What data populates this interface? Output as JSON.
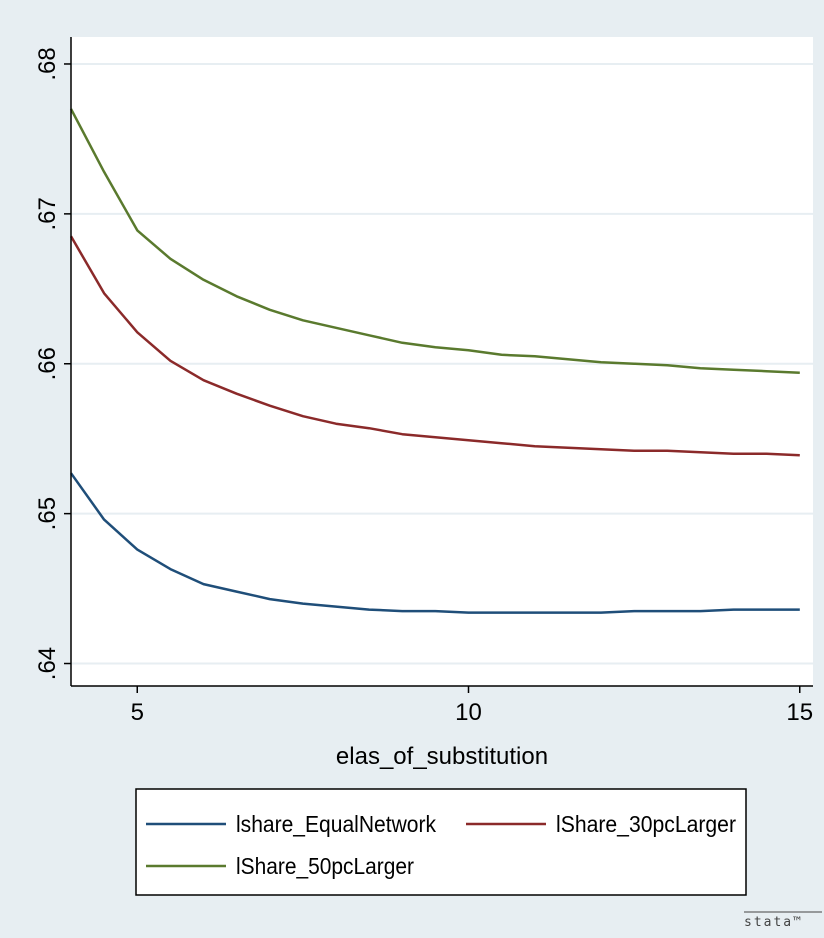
{
  "chart_data": {
    "type": "line",
    "xlabel": "elas_of_substitution",
    "ylabel": "",
    "xlim": [
      4,
      15.2
    ],
    "ylim": [
      0.6385,
      0.6818
    ],
    "x_ticks": [
      5,
      10,
      15
    ],
    "x_tick_labels": [
      "5",
      "10",
      "15"
    ],
    "y_ticks": [
      0.64,
      0.65,
      0.66,
      0.67,
      0.68
    ],
    "y_tick_labels": [
      ".64",
      ".65",
      ".66",
      ".67",
      ".68"
    ],
    "grid": "horizontal",
    "legend_placement": "bottom",
    "x": [
      4,
      4.5,
      5,
      5.5,
      6,
      6.5,
      7,
      7.5,
      8,
      8.5,
      9,
      9.5,
      10,
      10.5,
      11,
      11.5,
      12,
      12.5,
      13,
      13.5,
      14,
      14.5,
      15
    ],
    "series": [
      {
        "name": "lshare_EqualNetwork",
        "color": "#1f4e79",
        "values": [
          0.6527,
          0.6496,
          0.6476,
          0.6463,
          0.6453,
          0.6448,
          0.6443,
          0.644,
          0.6438,
          0.6436,
          0.6435,
          0.6435,
          0.6434,
          0.6434,
          0.6434,
          0.6434,
          0.6434,
          0.6435,
          0.6435,
          0.6435,
          0.6436,
          0.6436,
          0.6436
        ]
      },
      {
        "name": "lShare_30pcLarger",
        "color": "#8b2a2a",
        "values": [
          0.6685,
          0.6647,
          0.6621,
          0.6602,
          0.6589,
          0.658,
          0.6572,
          0.6565,
          0.656,
          0.6557,
          0.6553,
          0.6551,
          0.6549,
          0.6547,
          0.6545,
          0.6544,
          0.6543,
          0.6542,
          0.6542,
          0.6541,
          0.654,
          0.654,
          0.6539
        ]
      },
      {
        "name": "lShare_50pcLarger",
        "color": "#5a7a2e",
        "values": [
          0.677,
          0.6728,
          0.6689,
          0.667,
          0.6656,
          0.6645,
          0.6636,
          0.6629,
          0.6624,
          0.6619,
          0.6614,
          0.6611,
          0.6609,
          0.6606,
          0.6605,
          0.6603,
          0.6601,
          0.66,
          0.6599,
          0.6597,
          0.6596,
          0.6595,
          0.6594
        ]
      }
    ]
  },
  "colors": {
    "outer_background": "#e7eef2",
    "plot_background": "#ffffff",
    "grid": "#e7eef2",
    "axis": "#000000"
  },
  "watermark": "stata™"
}
